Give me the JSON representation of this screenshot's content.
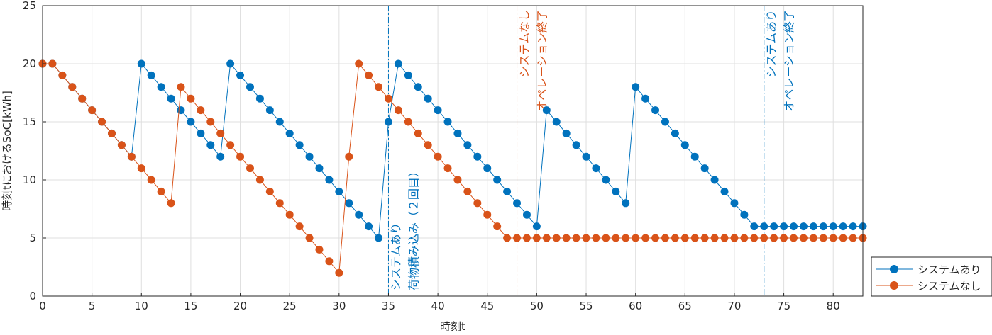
{
  "chart_data": {
    "type": "line",
    "title": "",
    "xlabel": "時刻t",
    "ylabel": "時刻tにおけるSoC[kWh]",
    "xlim": [
      0,
      83
    ],
    "ylim": [
      0,
      25
    ],
    "xticks": [
      0,
      5,
      10,
      15,
      20,
      25,
      30,
      35,
      40,
      45,
      50,
      55,
      60,
      65,
      70,
      75,
      80
    ],
    "yticks": [
      0,
      5,
      10,
      15,
      20,
      25
    ],
    "grid": true,
    "legend_position": "outside-bottom-right",
    "series": [
      {
        "name": "システムあり",
        "color": "#0072BD",
        "values": [
          20,
          20,
          19,
          18,
          17,
          16,
          15,
          14,
          13,
          12,
          20,
          19,
          18,
          17,
          16,
          15,
          14,
          13,
          12,
          20,
          19,
          18,
          17,
          16,
          15,
          14,
          13,
          12,
          11,
          10,
          9,
          8,
          7,
          6,
          5,
          15,
          20,
          19,
          18,
          17,
          16,
          15,
          14,
          13,
          12,
          11,
          10,
          9,
          8,
          7,
          6,
          16,
          15,
          14,
          13,
          12,
          11,
          10,
          9,
          8,
          18,
          17,
          16,
          15,
          14,
          13,
          12,
          11,
          10,
          9,
          8,
          7,
          6,
          6,
          6,
          6,
          6,
          6,
          6,
          6,
          6,
          6,
          6,
          6
        ]
      },
      {
        "name": "システムなし",
        "color": "#D95319",
        "values": [
          20,
          20,
          19,
          18,
          17,
          16,
          15,
          14,
          13,
          12,
          11,
          10,
          9,
          8,
          18,
          17,
          16,
          15,
          14,
          13,
          12,
          11,
          10,
          9,
          8,
          7,
          6,
          5,
          4,
          3,
          2,
          12,
          20,
          19,
          18,
          17,
          16,
          15,
          14,
          13,
          12,
          11,
          10,
          9,
          8,
          7,
          6,
          5,
          5,
          5,
          5,
          5,
          5,
          5,
          5,
          5,
          5,
          5,
          5,
          5,
          5,
          5,
          5,
          5,
          5,
          5,
          5,
          5,
          5,
          5,
          5,
          5,
          5,
          5,
          5,
          5,
          5,
          5,
          5,
          5,
          5,
          5,
          5,
          5
        ]
      }
    ],
    "annotations": [
      {
        "x": 35,
        "color": "#0072BD",
        "lines": [
          "システムあり",
          "荷物積み込み（２回目）"
        ],
        "anchor": "bottom"
      },
      {
        "x": 48,
        "color": "#D95319",
        "lines": [
          "システムなし",
          "オペレーション終了"
        ],
        "anchor": "top"
      },
      {
        "x": 73,
        "color": "#0072BD",
        "lines": [
          "システムあり",
          "オペレーション終了"
        ],
        "anchor": "top"
      }
    ]
  }
}
